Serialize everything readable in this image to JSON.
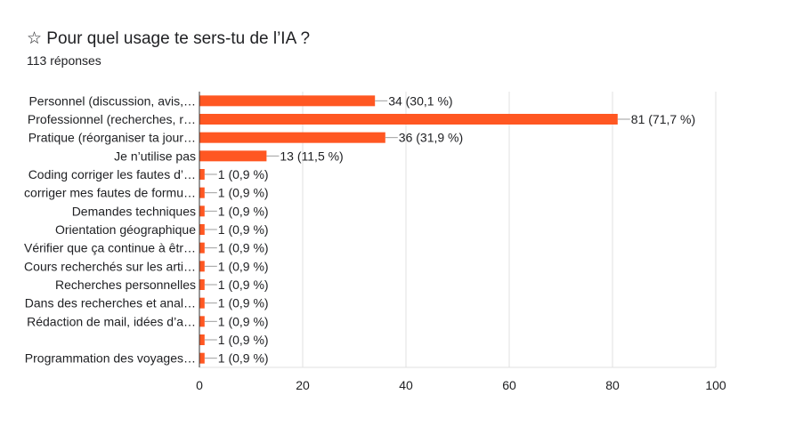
{
  "header": {
    "title": "☆ Pour quel usage te sers-tu de l’IA ?",
    "responses": "113 réponses"
  },
  "chart_data": {
    "type": "bar",
    "orientation": "horizontal",
    "title": "Pour quel usage te sers-tu de l’IA ?",
    "categories": [
      "Personnel (discussion, avis,…",
      "Professionnel (recherches, r…",
      "Pratique (réorganiser ta jour…",
      "Je n’utilise pas",
      "Coding corriger les fautes d’…",
      "corriger mes fautes de formu…",
      "Demandes techniques",
      "Orientation géographique",
      "Vérifier que ça continue à êtr…",
      "Cours recherchés sur les arti…",
      "Recherches personnelles",
      "Dans des recherches et anal…",
      "Rédaction de mail, idées d’a…",
      "",
      "Programmation des voyages…"
    ],
    "values": [
      34,
      81,
      36,
      13,
      1,
      1,
      1,
      1,
      1,
      1,
      1,
      1,
      1,
      1,
      1
    ],
    "data_labels": [
      "34 (30,1 %)",
      "81 (71,7 %)",
      "36 (31,9 %)",
      "13 (11,5 %)",
      "1 (0,9 %)",
      "1 (0,9 %)",
      "1 (0,9 %)",
      "1 (0,9 %)",
      "1 (0,9 %)",
      "1 (0,9 %)",
      "1 (0,9 %)",
      "1 (0,9 %)",
      "1 (0,9 %)",
      "1 (0,9 %)",
      "1 (0,9 %)"
    ],
    "xlim": [
      0,
      100
    ],
    "xticks": [
      "0",
      "20",
      "40",
      "60",
      "80",
      "100"
    ],
    "grid": true,
    "color": "#ff5722"
  }
}
